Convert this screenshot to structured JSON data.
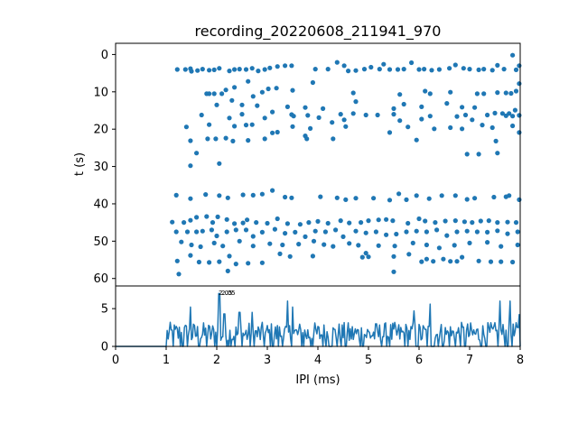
{
  "chart_data": [
    {
      "type": "scatter",
      "title": "recording_20220608_211941_970",
      "ylabel": "t (s)",
      "xlim": [
        0,
        8
      ],
      "ylim": [
        62,
        -3
      ],
      "y_inverted": true,
      "yticks": [
        "0",
        "10",
        "20",
        "30",
        "40",
        "50",
        "60"
      ],
      "color": "#1f77b4",
      "points": [
        [
          1.22,
          4.0
        ],
        [
          1.38,
          4.0
        ],
        [
          1.48,
          3.8
        ],
        [
          1.5,
          4.5
        ],
        [
          1.62,
          4.3
        ],
        [
          1.72,
          3.9
        ],
        [
          1.85,
          4.2
        ],
        [
          1.95,
          4.1
        ],
        [
          2.05,
          3.7
        ],
        [
          2.25,
          4.4
        ],
        [
          2.35,
          4.0
        ],
        [
          2.45,
          3.9
        ],
        [
          2.58,
          4.0
        ],
        [
          2.7,
          3.7
        ],
        [
          2.82,
          4.4
        ],
        [
          2.95,
          4.0
        ],
        [
          3.05,
          3.6
        ],
        [
          3.2,
          3.2
        ],
        [
          3.35,
          3.0
        ],
        [
          3.48,
          3.0
        ],
        [
          3.95,
          3.9
        ],
        [
          4.2,
          3.9
        ],
        [
          4.38,
          2.1
        ],
        [
          4.52,
          3.0
        ],
        [
          4.6,
          4.4
        ],
        [
          4.75,
          4.3
        ],
        [
          4.92,
          3.9
        ],
        [
          5.05,
          3.4
        ],
        [
          5.22,
          3.9
        ],
        [
          5.3,
          2.6
        ],
        [
          5.42,
          4.0
        ],
        [
          5.58,
          4.0
        ],
        [
          5.7,
          3.9
        ],
        [
          5.85,
          2.2
        ],
        [
          6.0,
          4.0
        ],
        [
          6.1,
          3.9
        ],
        [
          6.25,
          4.2
        ],
        [
          6.4,
          4.0
        ],
        [
          6.6,
          3.7
        ],
        [
          6.72,
          2.8
        ],
        [
          6.88,
          3.7
        ],
        [
          7.0,
          3.9
        ],
        [
          7.18,
          4.1
        ],
        [
          7.28,
          3.9
        ],
        [
          7.45,
          4.2
        ],
        [
          7.55,
          2.9
        ],
        [
          7.68,
          3.9
        ],
        [
          7.85,
          0.2
        ],
        [
          7.92,
          4.1
        ],
        [
          7.98,
          3.0
        ],
        [
          1.8,
          10.5
        ],
        [
          1.85,
          10.5
        ],
        [
          1.95,
          10.5
        ],
        [
          2.1,
          10.5
        ],
        [
          2.18,
          9.5
        ],
        [
          2.35,
          8.8
        ],
        [
          2.62,
          7.2
        ],
        [
          2.72,
          11.2
        ],
        [
          2.9,
          10.1
        ],
        [
          3.02,
          9.2
        ],
        [
          3.18,
          9.0
        ],
        [
          3.5,
          9.6
        ],
        [
          3.9,
          7.5
        ],
        [
          4.7,
          10.3
        ],
        [
          5.62,
          10.7
        ],
        [
          6.12,
          9.8
        ],
        [
          6.22,
          10.5
        ],
        [
          6.62,
          10.1
        ],
        [
          7.15,
          10.5
        ],
        [
          7.28,
          10.5
        ],
        [
          7.55,
          10.2
        ],
        [
          7.72,
          10.3
        ],
        [
          7.82,
          10.4
        ],
        [
          7.92,
          9.8
        ],
        [
          7.98,
          7.8
        ],
        [
          2.0,
          13.5
        ],
        [
          2.3,
          12.3
        ],
        [
          2.5,
          13.5
        ],
        [
          2.8,
          13.7
        ],
        [
          3.4,
          14.0
        ],
        [
          3.75,
          14.2
        ],
        [
          4.1,
          14.5
        ],
        [
          4.45,
          16.0
        ],
        [
          4.75,
          12.6
        ],
        [
          5.5,
          14.5
        ],
        [
          5.7,
          13.3
        ],
        [
          6.05,
          14.0
        ],
        [
          6.55,
          13.1
        ],
        [
          6.85,
          14.1
        ],
        [
          7.1,
          14.2
        ],
        [
          7.5,
          15.7
        ],
        [
          7.78,
          15.8
        ],
        [
          7.9,
          14.9
        ],
        [
          1.7,
          16.2
        ],
        [
          2.25,
          17.0
        ],
        [
          2.5,
          16.0
        ],
        [
          2.95,
          17.0
        ],
        [
          3.1,
          15.4
        ],
        [
          3.48,
          16.1
        ],
        [
          3.52,
          16.5
        ],
        [
          3.8,
          16.3
        ],
        [
          4.02,
          16.9
        ],
        [
          4.28,
          18.2
        ],
        [
          4.52,
          17.5
        ],
        [
          4.7,
          15.8
        ],
        [
          4.95,
          16.2
        ],
        [
          5.18,
          16.2
        ],
        [
          5.5,
          16.0
        ],
        [
          5.62,
          17.7
        ],
        [
          6.05,
          17.3
        ],
        [
          6.22,
          16.5
        ],
        [
          6.75,
          16.6
        ],
        [
          6.92,
          16.2
        ],
        [
          7.05,
          17.5
        ],
        [
          7.35,
          16.2
        ],
        [
          7.65,
          15.8
        ],
        [
          7.72,
          16.4
        ],
        [
          7.85,
          16.5
        ],
        [
          7.98,
          16.3
        ],
        [
          1.4,
          19.4
        ],
        [
          1.85,
          18.8
        ],
        [
          2.35,
          19.2
        ],
        [
          2.58,
          18.9
        ],
        [
          2.7,
          18.8
        ],
        [
          3.1,
          21.0
        ],
        [
          3.2,
          20.8
        ],
        [
          3.5,
          19.3
        ],
        [
          3.85,
          19.8
        ],
        [
          4.55,
          19.3
        ],
        [
          5.42,
          20.9
        ],
        [
          5.78,
          19.4
        ],
        [
          6.3,
          19.9
        ],
        [
          6.62,
          19.6
        ],
        [
          6.85,
          19.9
        ],
        [
          7.25,
          18.9
        ],
        [
          7.45,
          19.6
        ],
        [
          7.85,
          19.1
        ],
        [
          7.98,
          20.9
        ],
        [
          1.48,
          23.1
        ],
        [
          1.82,
          22.6
        ],
        [
          1.98,
          22.6
        ],
        [
          2.18,
          22.4
        ],
        [
          2.32,
          23.2
        ],
        [
          2.62,
          23.0
        ],
        [
          2.95,
          22.6
        ],
        [
          3.75,
          21.8
        ],
        [
          3.78,
          22.6
        ],
        [
          4.3,
          22.6
        ],
        [
          5.95,
          22.9
        ],
        [
          7.52,
          23.2
        ],
        [
          1.6,
          26.4
        ],
        [
          2.05,
          29.2
        ],
        [
          1.48,
          29.8
        ],
        [
          6.95,
          26.7
        ],
        [
          7.18,
          26.7
        ],
        [
          7.55,
          26.4
        ],
        [
          1.2,
          37.7
        ],
        [
          1.48,
          38.6
        ],
        [
          1.78,
          37.5
        ],
        [
          2.05,
          37.8
        ],
        [
          2.22,
          38.4
        ],
        [
          2.52,
          37.6
        ],
        [
          2.72,
          37.7
        ],
        [
          2.9,
          37.4
        ],
        [
          3.1,
          36.4
        ],
        [
          3.35,
          38.2
        ],
        [
          3.48,
          38.4
        ],
        [
          4.05,
          38.1
        ],
        [
          4.38,
          38.4
        ],
        [
          4.55,
          38.9
        ],
        [
          4.75,
          38.5
        ],
        [
          5.1,
          38.5
        ],
        [
          5.42,
          39.0
        ],
        [
          5.6,
          37.3
        ],
        [
          5.75,
          38.9
        ],
        [
          5.95,
          37.8
        ],
        [
          6.2,
          38.6
        ],
        [
          6.45,
          37.8
        ],
        [
          6.72,
          37.8
        ],
        [
          6.95,
          38.8
        ],
        [
          7.1,
          38.5
        ],
        [
          7.48,
          38.2
        ],
        [
          7.72,
          38.1
        ],
        [
          7.78,
          37.8
        ],
        [
          7.98,
          38.9
        ],
        [
          1.12,
          44.9
        ],
        [
          1.35,
          45.0
        ],
        [
          1.48,
          44.4
        ],
        [
          1.6,
          43.6
        ],
        [
          1.8,
          43.4
        ],
        [
          1.92,
          45.0
        ],
        [
          2.02,
          43.5
        ],
        [
          2.2,
          44.2
        ],
        [
          2.35,
          45.3
        ],
        [
          2.52,
          45.1
        ],
        [
          2.6,
          44.3
        ],
        [
          2.78,
          45.0
        ],
        [
          3.0,
          45.2
        ],
        [
          3.2,
          44.0
        ],
        [
          3.4,
          45.3
        ],
        [
          3.65,
          45.5
        ],
        [
          3.82,
          45.0
        ],
        [
          4.0,
          44.7
        ],
        [
          4.2,
          45.2
        ],
        [
          4.45,
          44.5
        ],
        [
          4.62,
          45.1
        ],
        [
          4.85,
          45.0
        ],
        [
          5.0,
          44.5
        ],
        [
          5.2,
          44.3
        ],
        [
          5.35,
          44.2
        ],
        [
          5.48,
          44.5
        ],
        [
          5.78,
          45.2
        ],
        [
          6.0,
          44.0
        ],
        [
          6.12,
          44.6
        ],
        [
          6.32,
          45.0
        ],
        [
          6.52,
          44.6
        ],
        [
          6.72,
          44.5
        ],
        [
          6.9,
          44.8
        ],
        [
          7.05,
          45.0
        ],
        [
          7.22,
          44.6
        ],
        [
          7.38,
          44.5
        ],
        [
          7.55,
          45.0
        ],
        [
          7.75,
          44.9
        ],
        [
          7.92,
          45.0
        ],
        [
          1.2,
          47.5
        ],
        [
          1.42,
          47.5
        ],
        [
          1.6,
          47.5
        ],
        [
          1.72,
          47.3
        ],
        [
          1.9,
          47.0
        ],
        [
          2.0,
          48.6
        ],
        [
          2.2,
          47.5
        ],
        [
          2.38,
          47.0
        ],
        [
          2.58,
          47.0
        ],
        [
          2.72,
          48.7
        ],
        [
          2.9,
          47.6
        ],
        [
          3.15,
          46.8
        ],
        [
          3.35,
          47.9
        ],
        [
          3.55,
          47.6
        ],
        [
          3.75,
          48.8
        ],
        [
          3.95,
          47.3
        ],
        [
          4.15,
          47.5
        ],
        [
          4.35,
          47.0
        ],
        [
          4.5,
          48.8
        ],
        [
          4.75,
          47.3
        ],
        [
          4.95,
          47.8
        ],
        [
          5.15,
          47.5
        ],
        [
          5.35,
          48.3
        ],
        [
          5.55,
          48.1
        ],
        [
          5.75,
          47.5
        ],
        [
          5.95,
          47.3
        ],
        [
          6.15,
          47.5
        ],
        [
          6.35,
          47.0
        ],
        [
          6.55,
          48.5
        ],
        [
          6.75,
          47.5
        ],
        [
          6.95,
          47.3
        ],
        [
          7.15,
          47.5
        ],
        [
          7.35,
          47.6
        ],
        [
          7.55,
          47.2
        ],
        [
          7.75,
          48.0
        ],
        [
          7.95,
          47.5
        ],
        [
          1.3,
          50.2
        ],
        [
          1.5,
          51.0
        ],
        [
          1.68,
          51.5
        ],
        [
          1.95,
          50.5
        ],
        [
          2.12,
          51.3
        ],
        [
          2.45,
          50.0
        ],
        [
          2.72,
          51.3
        ],
        [
          3.05,
          50.7
        ],
        [
          3.3,
          51.0
        ],
        [
          3.62,
          50.8
        ],
        [
          3.92,
          50.0
        ],
        [
          4.12,
          50.9
        ],
        [
          4.3,
          51.4
        ],
        [
          4.62,
          50.6
        ],
        [
          4.8,
          51.1
        ],
        [
          5.2,
          51.2
        ],
        [
          5.52,
          51.3
        ],
        [
          5.88,
          50.5
        ],
        [
          6.15,
          51.0
        ],
        [
          6.4,
          51.8
        ],
        [
          6.7,
          51.1
        ],
        [
          7.0,
          50.5
        ],
        [
          7.35,
          50.3
        ],
        [
          7.62,
          51.4
        ],
        [
          7.95,
          51.0
        ],
        [
          1.22,
          55.3
        ],
        [
          1.48,
          53.8
        ],
        [
          1.65,
          55.6
        ],
        [
          1.85,
          55.7
        ],
        [
          2.05,
          55.5
        ],
        [
          2.25,
          54.0
        ],
        [
          2.38,
          56.1
        ],
        [
          2.62,
          55.9
        ],
        [
          2.9,
          55.8
        ],
        [
          3.25,
          53.4
        ],
        [
          3.45,
          54.1
        ],
        [
          3.9,
          54.0
        ],
        [
          4.88,
          54.3
        ],
        [
          4.95,
          53.2
        ],
        [
          5.0,
          54.2
        ],
        [
          5.5,
          54.1
        ],
        [
          5.8,
          53.5
        ],
        [
          6.05,
          55.5
        ],
        [
          6.15,
          54.8
        ],
        [
          6.28,
          55.4
        ],
        [
          6.48,
          54.8
        ],
        [
          6.62,
          55.4
        ],
        [
          6.75,
          55.4
        ],
        [
          6.85,
          54.3
        ],
        [
          7.18,
          55.3
        ],
        [
          7.42,
          55.5
        ],
        [
          7.62,
          55.5
        ],
        [
          7.85,
          55.6
        ],
        [
          1.25,
          58.8
        ],
        [
          2.22,
          58.0
        ],
        [
          5.5,
          58.2
        ]
      ]
    },
    {
      "type": "line",
      "xlabel": "IPI (ms)",
      "xlim": [
        0,
        8
      ],
      "ylim": [
        0,
        8
      ],
      "xticks": [
        "0",
        "1",
        "2",
        "3",
        "4",
        "5",
        "6",
        "7",
        "8"
      ],
      "yticks": [
        "0",
        "5"
      ],
      "peak_label": "2.05",
      "color": "#1f77b4"
    }
  ]
}
